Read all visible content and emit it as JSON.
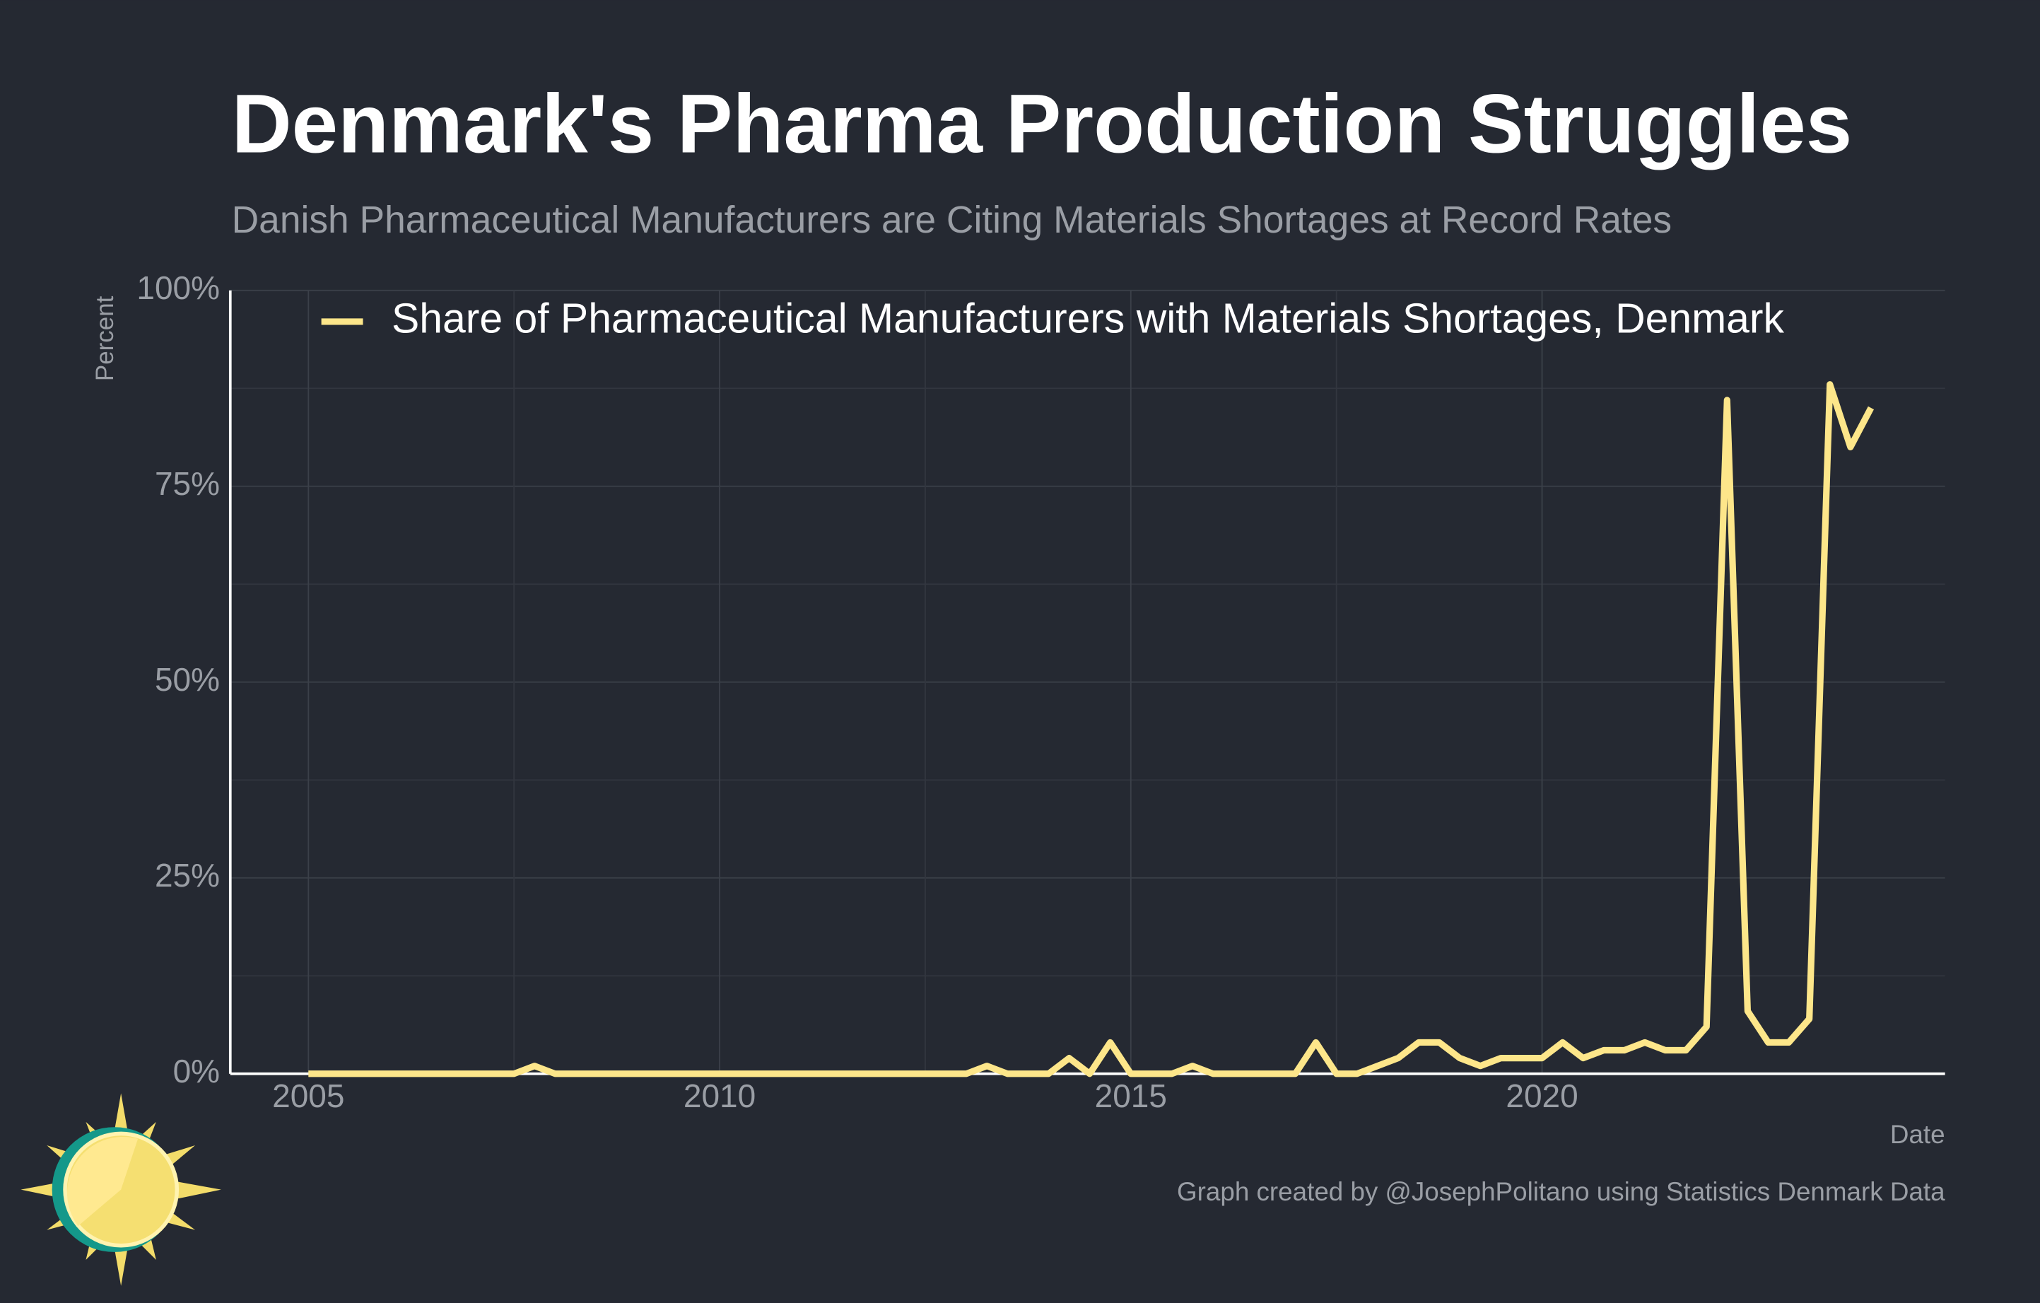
{
  "chart_data": {
    "type": "line",
    "title": "Denmark's Pharma Production Struggles",
    "subtitle": "Danish Pharmaceutical Manufacturers are Citing Materials Shortages at Record Rates",
    "ylabel": "Percent",
    "xlabel": "Date",
    "caption": "Graph created by @JosephPolitano using Statistics Denmark Data",
    "x": [
      2005,
      2005.25,
      2005.5,
      2005.75,
      2006,
      2006.25,
      2006.5,
      2006.75,
      2007,
      2007.25,
      2007.5,
      2007.75,
      2008,
      2008.25,
      2008.5,
      2008.75,
      2009,
      2009.25,
      2009.5,
      2009.75,
      2010,
      2010.25,
      2010.5,
      2010.75,
      2011,
      2011.25,
      2011.5,
      2011.75,
      2012,
      2012.25,
      2012.5,
      2012.75,
      2013,
      2013.25,
      2013.5,
      2013.75,
      2014,
      2014.25,
      2014.5,
      2014.75,
      2015,
      2015.25,
      2015.5,
      2015.75,
      2016,
      2016.25,
      2016.5,
      2016.75,
      2017,
      2017.25,
      2017.5,
      2017.75,
      2018,
      2018.25,
      2018.5,
      2018.75,
      2019,
      2019.25,
      2019.5,
      2019.75,
      2020,
      2020.25,
      2020.5,
      2020.75,
      2021,
      2021.25,
      2021.5,
      2021.75,
      2022,
      2022.25,
      2022.5,
      2022.75,
      2023,
      2023.25,
      2023.5,
      2023.75,
      2024
    ],
    "series": [
      {
        "name": "Share of Pharmaceutical Manufacturers with Materials Shortages, Denmark",
        "color": "#fde68a",
        "values": [
          0,
          0,
          0,
          0,
          0,
          0,
          0,
          0,
          0,
          0,
          0,
          1,
          0,
          0,
          0,
          0,
          0,
          0,
          0,
          0,
          0,
          0,
          0,
          0,
          0,
          0,
          0,
          0,
          0,
          0,
          0,
          0,
          0,
          1,
          0,
          0,
          0,
          2,
          0,
          4,
          0,
          0,
          0,
          1,
          0,
          0,
          0,
          0,
          0,
          4,
          0,
          0,
          1,
          2,
          4,
          4,
          2,
          1,
          2,
          2,
          2,
          4,
          2,
          3,
          3,
          4,
          3,
          3,
          6,
          86,
          8,
          4,
          4,
          7,
          88,
          80,
          85
        ]
      }
    ],
    "xlim": [
      2004.05,
      2024.9
    ],
    "xticks": [
      2005,
      2010,
      2015,
      2020
    ],
    "ylim": [
      0,
      100
    ],
    "yticks": [
      {
        "value": 0,
        "label": "0%"
      },
      {
        "value": 25,
        "label": "25%"
      },
      {
        "value": 50,
        "label": "50%"
      },
      {
        "value": 75,
        "label": "75%"
      },
      {
        "value": 100,
        "label": "100%"
      }
    ],
    "grid": true,
    "legend": "top-left"
  }
}
